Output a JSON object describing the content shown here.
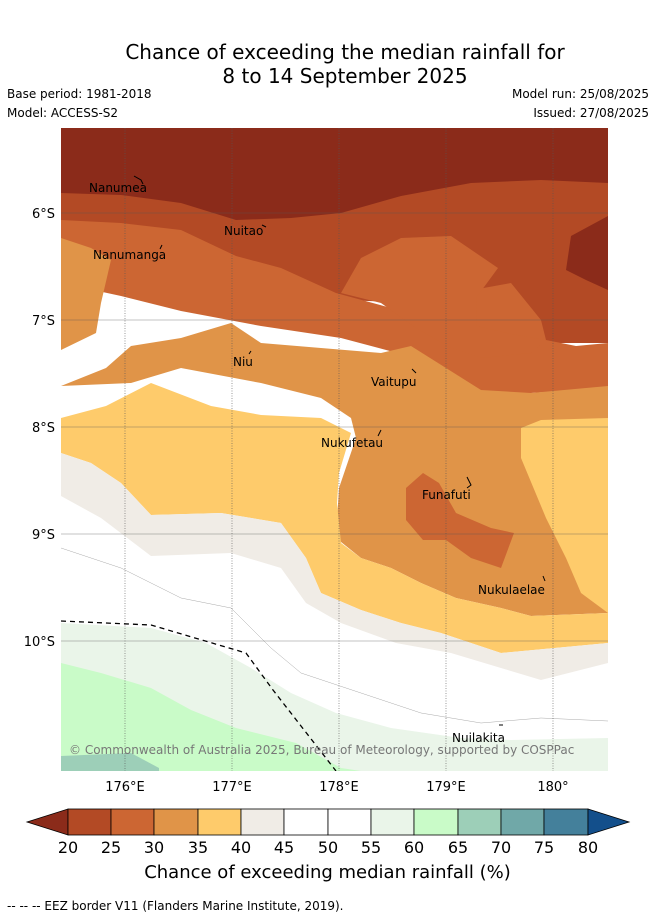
{
  "header": {
    "title_line1": "Chance of exceeding the median rainfall for",
    "title_line2": "8 to 14 September 2025",
    "base_period": "Base period: 1981-2018",
    "model": "Model: ACCESS-S2",
    "model_run": "Model run: 25/08/2025",
    "issued": "Issued: 27/08/2025"
  },
  "map": {
    "lat_labels": [
      "6°S",
      "7°S",
      "8°S",
      "9°S",
      "10°S"
    ],
    "lon_labels": [
      "176°E",
      "177°E",
      "178°E",
      "179°E",
      "180°"
    ],
    "places": [
      "Nanumea",
      "Nuitao",
      "Nanumanga",
      "Niu",
      "Vaitupu",
      "Nukufetau",
      "Funafuti",
      "Nukulaelae",
      "Nuilakita"
    ],
    "copyright": "© Commonwealth of Australia 2025, Bureau of Meteorology, supported by COSPPac",
    "eez_border": "dashed",
    "colors": {
      "lt20": "#8b2b1a",
      "20_25": "#b34a25",
      "25_30": "#cc6633",
      "30_35": "#e09448",
      "35_40": "#fecb6b",
      "40_45": "#f0ece6",
      "45_55": "#ffffff",
      "55_60": "#eaf5e9",
      "60_65": "#c9fbc8",
      "65_70": "#9dcfb8",
      "70_75": "#70a8a8",
      "75_80": "#44809b",
      "gt80": "#134f8b"
    }
  },
  "colorbar": {
    "ticks": [
      "20",
      "25",
      "30",
      "35",
      "40",
      "45",
      "50",
      "55",
      "60",
      "65",
      "70",
      "75",
      "80"
    ],
    "label": "Chance of exceeding median rainfall (%)"
  },
  "footnote": "-- -- -- EEZ border V11 (Flanders Marine Institute, 2019)."
}
